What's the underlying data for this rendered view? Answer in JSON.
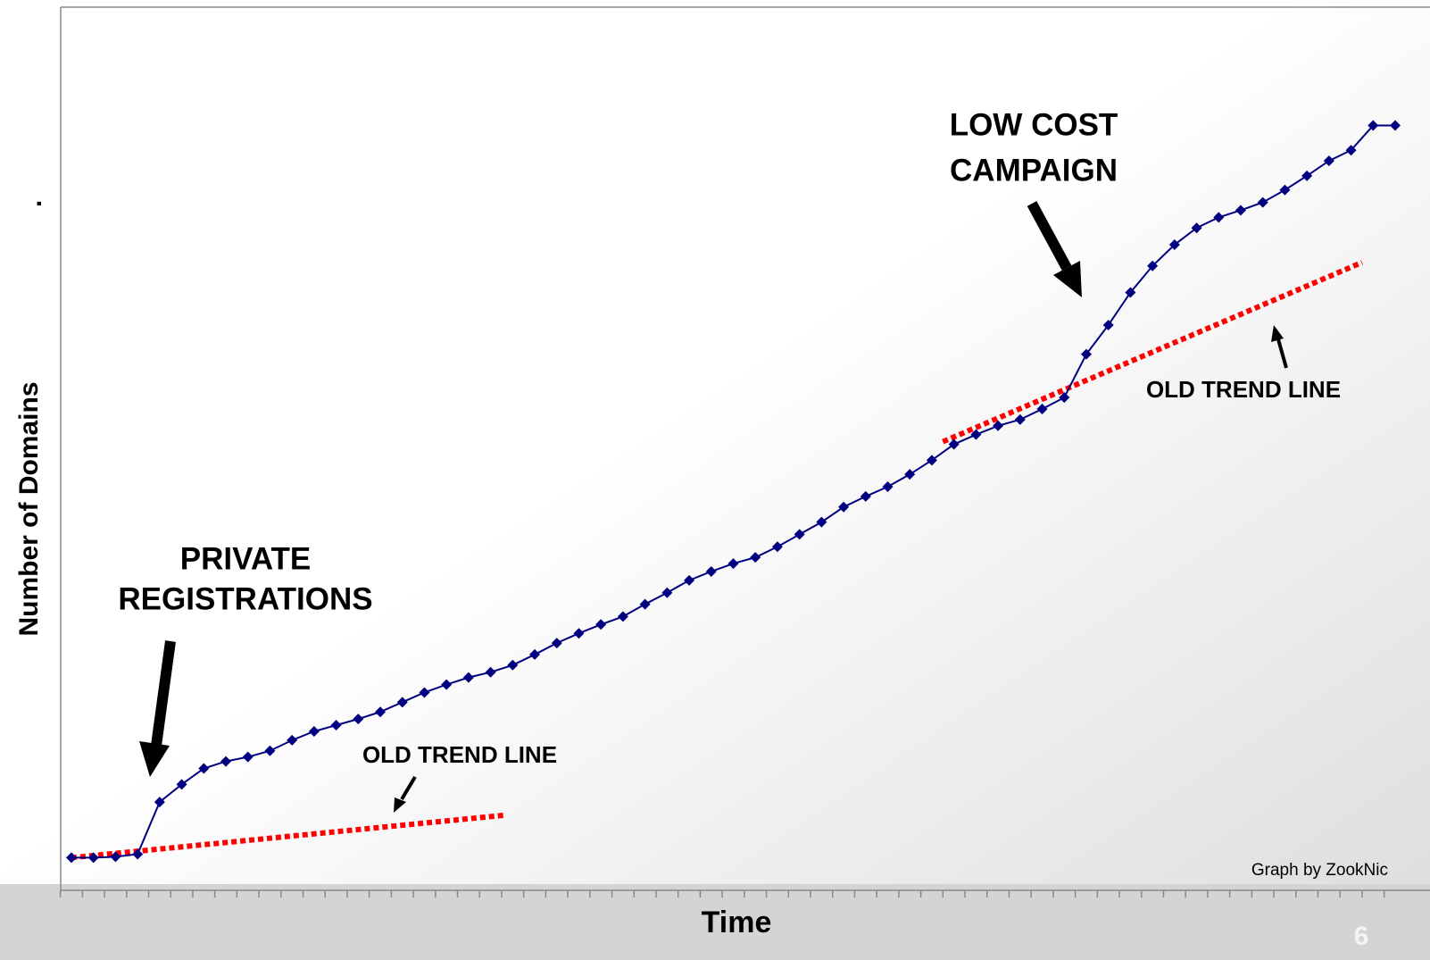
{
  "chart_data": {
    "type": "line",
    "y_label": "Number of Domains",
    "y_label_mark": ".",
    "x_label": "Time",
    "credit": "Graph by ZookNic",
    "page_number": "6",
    "categories": [
      null,
      null,
      null,
      null,
      null,
      null,
      null,
      null,
      null,
      null,
      null,
      null,
      null,
      null,
      null,
      null,
      null,
      null,
      null,
      null,
      null,
      null,
      null,
      null,
      null,
      null,
      null,
      null,
      null,
      null,
      null,
      null,
      null,
      null,
      null,
      null,
      null,
      null,
      null,
      null,
      null,
      null,
      null,
      null,
      null,
      null,
      null,
      null,
      null,
      null,
      null,
      null,
      null,
      null,
      null,
      null,
      null,
      null,
      null,
      null,
      null
    ],
    "color": "#000080",
    "values": [
      3.7,
      3.7,
      3.8,
      4.1,
      10.0,
      12.0,
      13.8,
      14.6,
      15.1,
      15.8,
      17.0,
      18.0,
      18.7,
      19.4,
      20.2,
      21.3,
      22.4,
      23.3,
      24.1,
      24.7,
      25.5,
      26.7,
      28.0,
      29.1,
      30.1,
      31.0,
      32.4,
      33.7,
      35.1,
      36.1,
      37.0,
      37.7,
      38.9,
      40.3,
      41.7,
      43.4,
      44.6,
      45.7,
      47.1,
      48.7,
      50.5,
      51.6,
      52.6,
      53.3,
      54.5,
      55.8,
      60.7,
      64.0,
      67.7,
      70.7,
      73.1,
      75.0,
      76.2,
      77.0,
      77.9,
      79.3,
      80.9,
      82.6,
      83.8,
      86.6,
      86.6
    ],
    "ylim": [
      0,
      100
    ],
    "trend_lines": [
      {
        "color": "#ff0000",
        "x": [
          0,
          19.6
        ],
        "values": [
          3.7,
          8.5
        ]
      },
      {
        "color": "#ff0000",
        "x": [
          39.5,
          58.5
        ],
        "values": [
          50.8,
          71.1
        ]
      }
    ],
    "annotations": [
      {
        "lines": [
          "PRIVATE",
          "REGISTRATIONS"
        ]
      },
      {
        "lines": [
          "OLD TREND LINE"
        ]
      },
      {
        "lines": [
          "LOW COST",
          "CAMPAIGN"
        ]
      },
      {
        "lines": [
          "OLD TREND LINE"
        ]
      }
    ]
  }
}
